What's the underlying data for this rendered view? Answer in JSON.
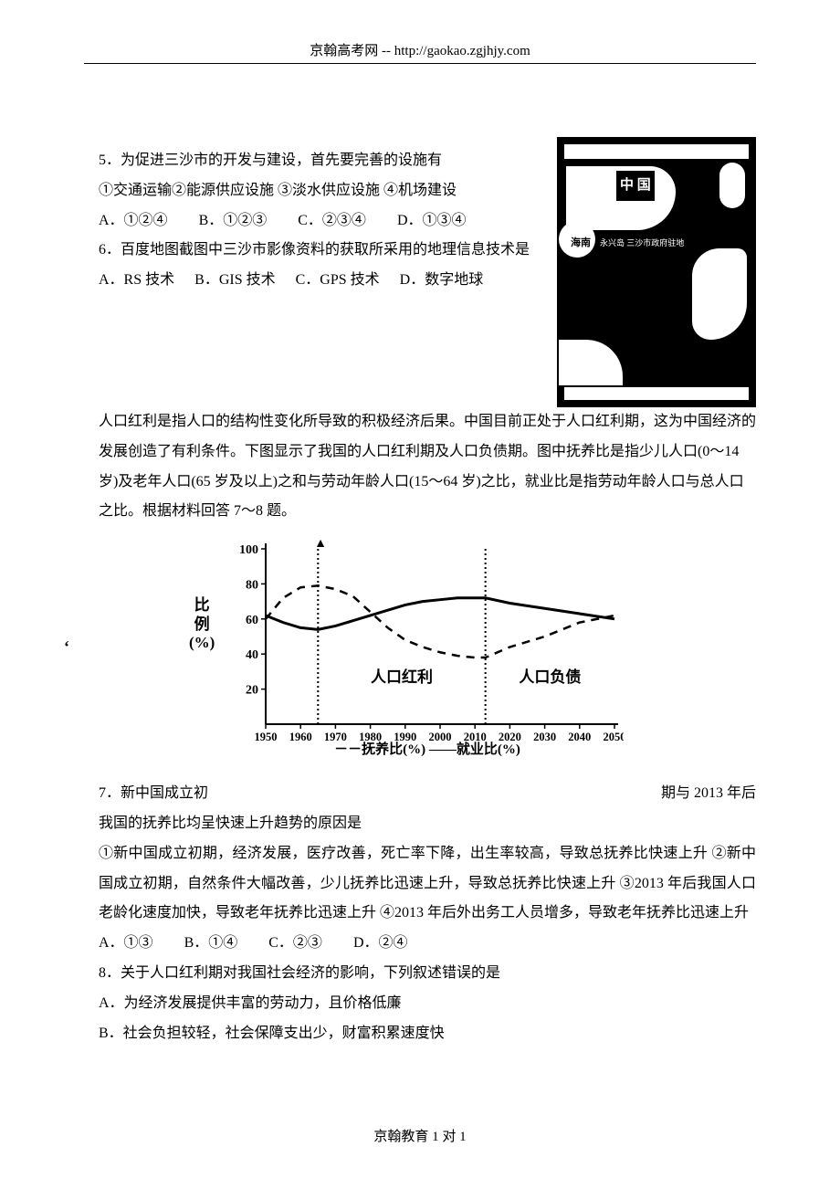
{
  "header": {
    "site": "京翰高考网",
    "sep": "  -- ",
    "url": "http://gaokao.zgjhjy.com"
  },
  "map": {
    "label_china": "中 国",
    "label_sansha": "永兴岛 三沙市政府驻地",
    "label_hainan": "海南"
  },
  "q5": {
    "stem_l1": "5．为促进三沙市的开发与建设，首先要完善的设施有",
    "stem_l2": "①交通运输②能源供应设施  ③淡水供应设施  ④机场建设",
    "opts": {
      "a": "A．①②④",
      "b": "B．①②③",
      "c": "C．②③④",
      "d": "D．①③④"
    }
  },
  "q6": {
    "stem_l1": "6．百度地图截图中三沙市影像资料的获取所采用的地理信息技术是",
    "opts": {
      "a": "A．RS 技术",
      "b": "B．GIS 技术",
      "c": "C．GPS 技术",
      "d": "D．数字地球"
    }
  },
  "passage": "人口红利是指人口的结构性变化所导致的积极经济后果。中国目前正处于人口红利期，这为中国经济的发展创造了有利条件。下图显示了我国的人口红利期及人口负债期。图中抚养比是指少儿人口(0～14 岁)及老年人口(65 岁及以上)之和与劳动年龄人口(15～64 岁)之比，就业比是指劳动年龄人口与总人口之比。根据材料回答 7～8 题。",
  "chart": {
    "type": "line",
    "ylabel_l1": "比",
    "ylabel_l2": "例",
    "ylabel_l3": "(%)",
    "ylim": [
      0,
      100
    ],
    "yticks": [
      20,
      40,
      60,
      80,
      100
    ],
    "xticks": [
      "1950",
      "1960",
      "1970",
      "1980",
      "1990",
      "2000",
      "2010",
      "2020",
      "2030",
      "2040",
      "2050"
    ],
    "vlines_x": [
      1965,
      2013
    ],
    "region_labels": {
      "bonus": "人口红利",
      "debt": "人口负债"
    },
    "series": {
      "fuyang": {
        "label": "抚养比(%)",
        "dash": true,
        "points": [
          [
            1950,
            60
          ],
          [
            1955,
            72
          ],
          [
            1960,
            78
          ],
          [
            1965,
            79
          ],
          [
            1970,
            77
          ],
          [
            1975,
            73
          ],
          [
            1980,
            64
          ],
          [
            1985,
            55
          ],
          [
            1990,
            48
          ],
          [
            1995,
            44
          ],
          [
            2000,
            41
          ],
          [
            2005,
            39
          ],
          [
            2010,
            38
          ],
          [
            2013,
            38
          ],
          [
            2020,
            44
          ],
          [
            2030,
            50
          ],
          [
            2040,
            58
          ],
          [
            2050,
            62
          ]
        ]
      },
      "jiuye": {
        "label": "就业比(%)",
        "dash": false,
        "points": [
          [
            1950,
            62
          ],
          [
            1955,
            58
          ],
          [
            1960,
            55
          ],
          [
            1965,
            54
          ],
          [
            1970,
            56
          ],
          [
            1975,
            59
          ],
          [
            1980,
            62
          ],
          [
            1985,
            65
          ],
          [
            1990,
            68
          ],
          [
            1995,
            70
          ],
          [
            2000,
            71
          ],
          [
            2005,
            72
          ],
          [
            2010,
            72
          ],
          [
            2013,
            72
          ],
          [
            2020,
            69
          ],
          [
            2030,
            66
          ],
          [
            2040,
            63
          ],
          [
            2050,
            60
          ]
        ]
      }
    },
    "legend_prefix_dash": "－－",
    "legend_prefix_solid": "——",
    "colors": {
      "line": "#000000",
      "bg": "#ffffff"
    },
    "top_triangle": "▲"
  },
  "q7": {
    "left": "7．新中国成立初",
    "right": "期与 2013 年后",
    "stem_l2": "我国的抚养比均呈快速上升趋势的原因是",
    "choices": "①新中国成立初期，经济发展，医疗改善，死亡率下降，出生率较高，导致总抚养比快速上升  ②新中国成立初期，自然条件大幅改善，少儿抚养比迅速上升，导致总抚养比快速上升  ③2013 年后我国人口老龄化速度加快，导致老年抚养比迅速上升  ④2013 年后外出务工人员增多，导致老年抚养比迅速上升",
    "opts": {
      "a": "A．①③",
      "b": "B．①④",
      "c": "C．②③",
      "d": "D．②④"
    }
  },
  "q8": {
    "stem": "8．关于人口红利期对我国社会经济的影响，下列叙述错误的是",
    "a": "A．为经济发展提供丰富的劳动力，且价格低廉",
    "b": "B．社会负担较轻，社会保障支出少，财富积累速度快"
  },
  "footer": "京翰教育 1 对 1",
  "stray": "‘"
}
